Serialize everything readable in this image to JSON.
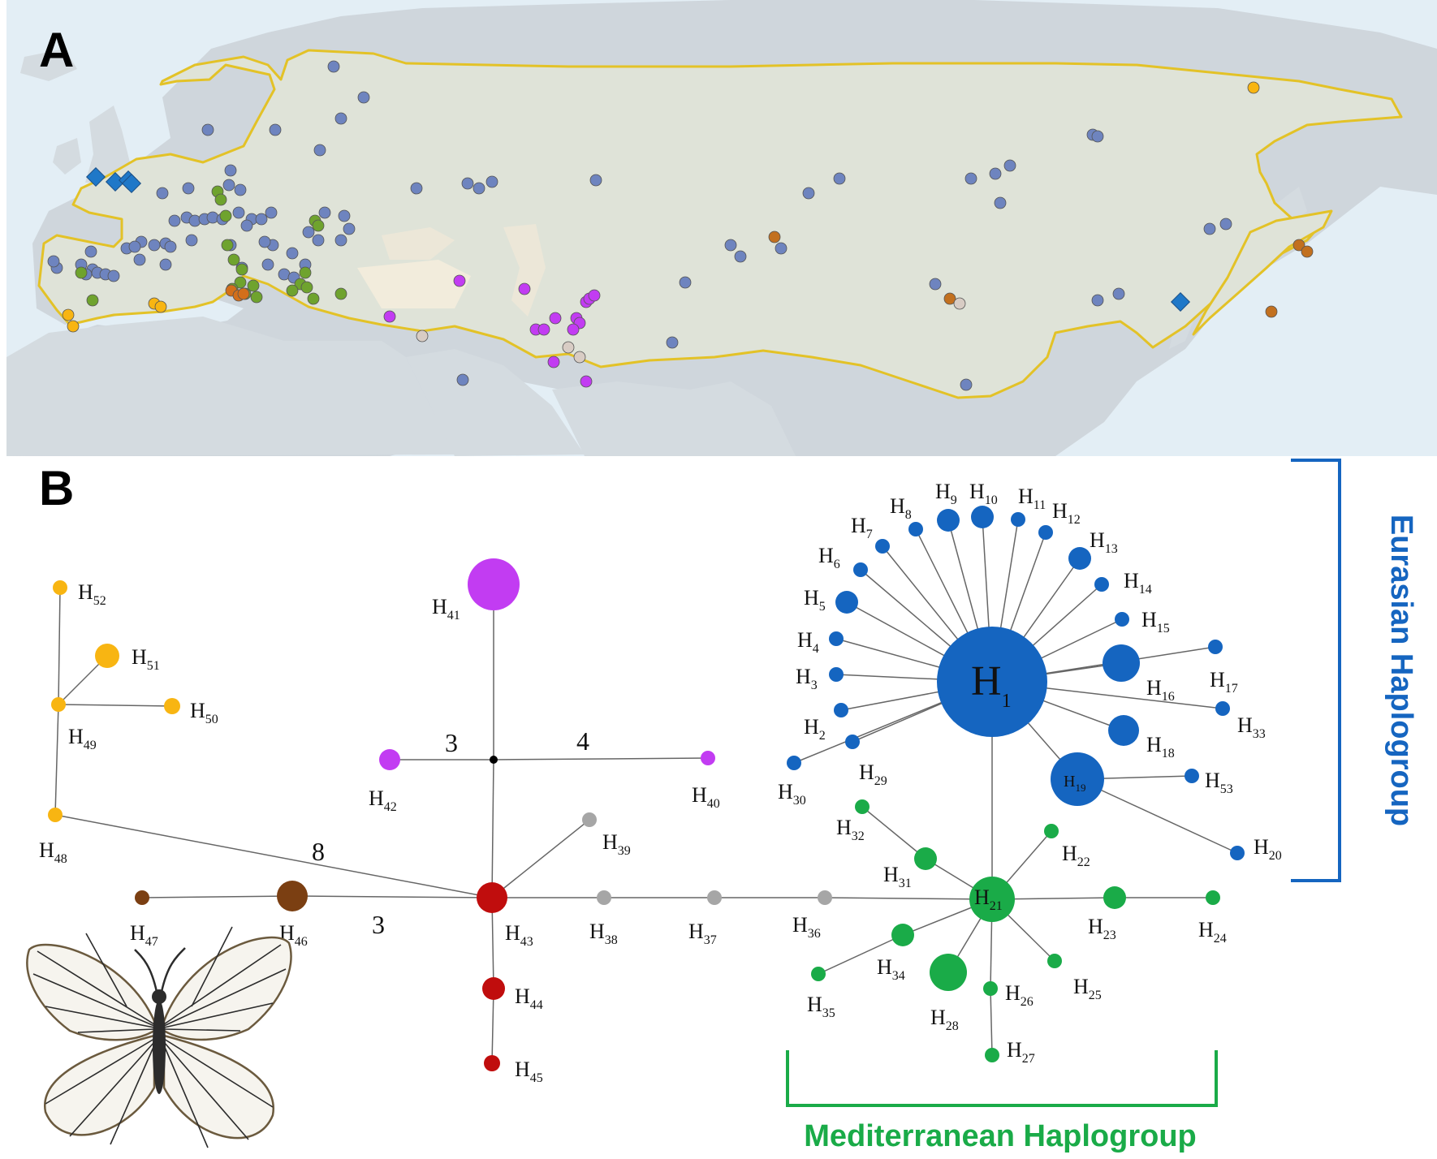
{
  "panel_a": {
    "letter": "A"
  },
  "panel_b": {
    "letter": "B"
  },
  "colors": {
    "eurasian": "#1565c0",
    "mediterranean": "#1aab48",
    "red": "#c00d0d",
    "brown": "#7b3f12",
    "grey": "#a6a6a6",
    "yellow": "#f8b512",
    "purple": "#c23cf2",
    "range_outline": "#e3c227",
    "range_fill": "#dfe3d8",
    "sea": "#e3eef5",
    "map_dot_blue": "#6e84bf",
    "map_dot_green": "#6fa32e",
    "map_dot_orange": "#d36f1a",
    "map_dot_diamond": "#1f78c8"
  },
  "groups": {
    "eurasian": "Eurasian Haplogroup",
    "mediterranean": "Mediterranean Haplogroup"
  },
  "branch_labels": [
    {
      "id": "m3a",
      "text": "3"
    },
    {
      "id": "m4",
      "text": "4"
    },
    {
      "id": "m8",
      "text": "8"
    },
    {
      "id": "m3b",
      "text": "3"
    }
  ],
  "haplotypes": [
    {
      "id": "H1",
      "base": "H",
      "sub": "1"
    },
    {
      "id": "H2",
      "base": "H",
      "sub": "2"
    },
    {
      "id": "H3",
      "base": "H",
      "sub": "3"
    },
    {
      "id": "H4",
      "base": "H",
      "sub": "4"
    },
    {
      "id": "H5",
      "base": "H",
      "sub": "5"
    },
    {
      "id": "H6",
      "base": "H",
      "sub": "6"
    },
    {
      "id": "H7",
      "base": "H",
      "sub": "7"
    },
    {
      "id": "H8",
      "base": "H",
      "sub": "8"
    },
    {
      "id": "H9",
      "base": "H",
      "sub": "9"
    },
    {
      "id": "H10",
      "base": "H",
      "sub": "10"
    },
    {
      "id": "H11",
      "base": "H",
      "sub": "11"
    },
    {
      "id": "H12",
      "base": "H",
      "sub": "12"
    },
    {
      "id": "H13",
      "base": "H",
      "sub": "13"
    },
    {
      "id": "H14",
      "base": "H",
      "sub": "14"
    },
    {
      "id": "H15",
      "base": "H",
      "sub": "15"
    },
    {
      "id": "H16",
      "base": "H",
      "sub": "16"
    },
    {
      "id": "H17",
      "base": "H",
      "sub": "17"
    },
    {
      "id": "H18",
      "base": "H",
      "sub": "18"
    },
    {
      "id": "H19",
      "base": "H",
      "sub": "19"
    },
    {
      "id": "H20",
      "base": "H",
      "sub": "20"
    },
    {
      "id": "H21",
      "base": "H",
      "sub": "21"
    },
    {
      "id": "H22",
      "base": "H",
      "sub": "22"
    },
    {
      "id": "H23",
      "base": "H",
      "sub": "23"
    },
    {
      "id": "H24",
      "base": "H",
      "sub": "24"
    },
    {
      "id": "H25",
      "base": "H",
      "sub": "25"
    },
    {
      "id": "H26",
      "base": "H",
      "sub": "26"
    },
    {
      "id": "H27",
      "base": "H",
      "sub": "27"
    },
    {
      "id": "H28",
      "base": "H",
      "sub": "28"
    },
    {
      "id": "H29",
      "base": "H",
      "sub": "29"
    },
    {
      "id": "H30",
      "base": "H",
      "sub": "30"
    },
    {
      "id": "H31",
      "base": "H",
      "sub": "31"
    },
    {
      "id": "H32",
      "base": "H",
      "sub": "32"
    },
    {
      "id": "H33",
      "base": "H",
      "sub": "33"
    },
    {
      "id": "H34",
      "base": "H",
      "sub": "34"
    },
    {
      "id": "H35",
      "base": "H",
      "sub": "35"
    },
    {
      "id": "H36",
      "base": "H",
      "sub": "36"
    },
    {
      "id": "H37",
      "base": "H",
      "sub": "37"
    },
    {
      "id": "H38",
      "base": "H",
      "sub": "38"
    },
    {
      "id": "H39",
      "base": "H",
      "sub": "39"
    },
    {
      "id": "H40",
      "base": "H",
      "sub": "40"
    },
    {
      "id": "H41",
      "base": "H",
      "sub": "41"
    },
    {
      "id": "H42",
      "base": "H",
      "sub": "42"
    },
    {
      "id": "H43",
      "base": "H",
      "sub": "43"
    },
    {
      "id": "H44",
      "base": "H",
      "sub": "44"
    },
    {
      "id": "H45",
      "base": "H",
      "sub": "45"
    },
    {
      "id": "H46",
      "base": "H",
      "sub": "46"
    },
    {
      "id": "H47",
      "base": "H",
      "sub": "47"
    },
    {
      "id": "H48",
      "base": "H",
      "sub": "48"
    },
    {
      "id": "H49",
      "base": "H",
      "sub": "49"
    },
    {
      "id": "H50",
      "base": "H",
      "sub": "50"
    },
    {
      "id": "H51",
      "base": "H",
      "sub": "51"
    },
    {
      "id": "H52",
      "base": "H",
      "sub": "52"
    },
    {
      "id": "H53",
      "base": "H",
      "sub": "53"
    }
  ]
}
